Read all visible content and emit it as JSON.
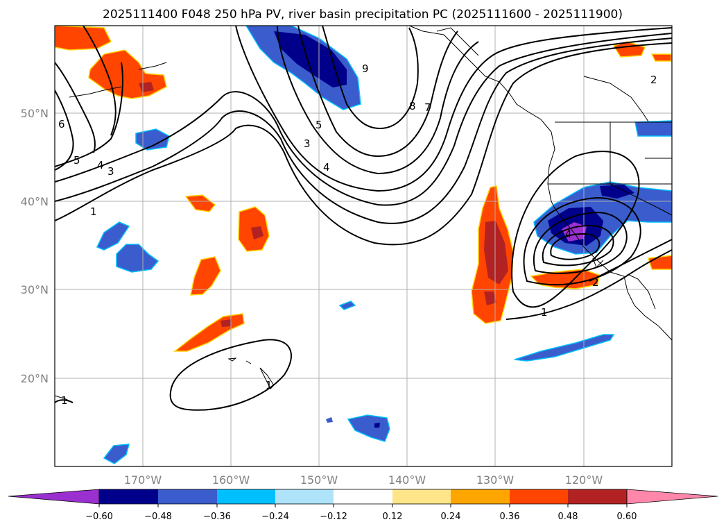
{
  "title": "2025111400 F048 250 hPa PV, river basin precipitation PC (2025111600 - 2025111900)",
  "map": {
    "lon_range": [
      -180,
      -110
    ],
    "lat_range": [
      10,
      60
    ],
    "lon_ticks": [
      -170,
      -160,
      -150,
      -140,
      -130,
      -120
    ],
    "lon_tick_labels": [
      "170°W",
      "160°W",
      "150°W",
      "140°W",
      "130°W",
      "120°W"
    ],
    "lat_ticks": [
      20,
      30,
      40,
      50
    ],
    "lat_tick_labels": [
      "20°N",
      "30°N",
      "40°N",
      "50°N"
    ],
    "grid": true
  },
  "colorbar": {
    "ticks": [
      "−0.60",
      "−0.48",
      "−0.36",
      "−0.24",
      "−0.12",
      "0.12",
      "0.24",
      "0.36",
      "0.48",
      "0.60"
    ],
    "colors": [
      "#9b30d0",
      "#00008b",
      "#3a5ccc",
      "#00bfff",
      "#aee3fa",
      "#ffffff",
      "#ffe58a",
      "#ffa500",
      "#ff4500",
      "#b22222",
      "#ff88aa"
    ]
  },
  "contour_labels": [
    "9",
    "8",
    "7",
    "5",
    "3",
    "4",
    "5",
    "4",
    "3",
    "6",
    "1",
    "2",
    "2",
    "1",
    "4",
    "1",
    "1"
  ]
}
